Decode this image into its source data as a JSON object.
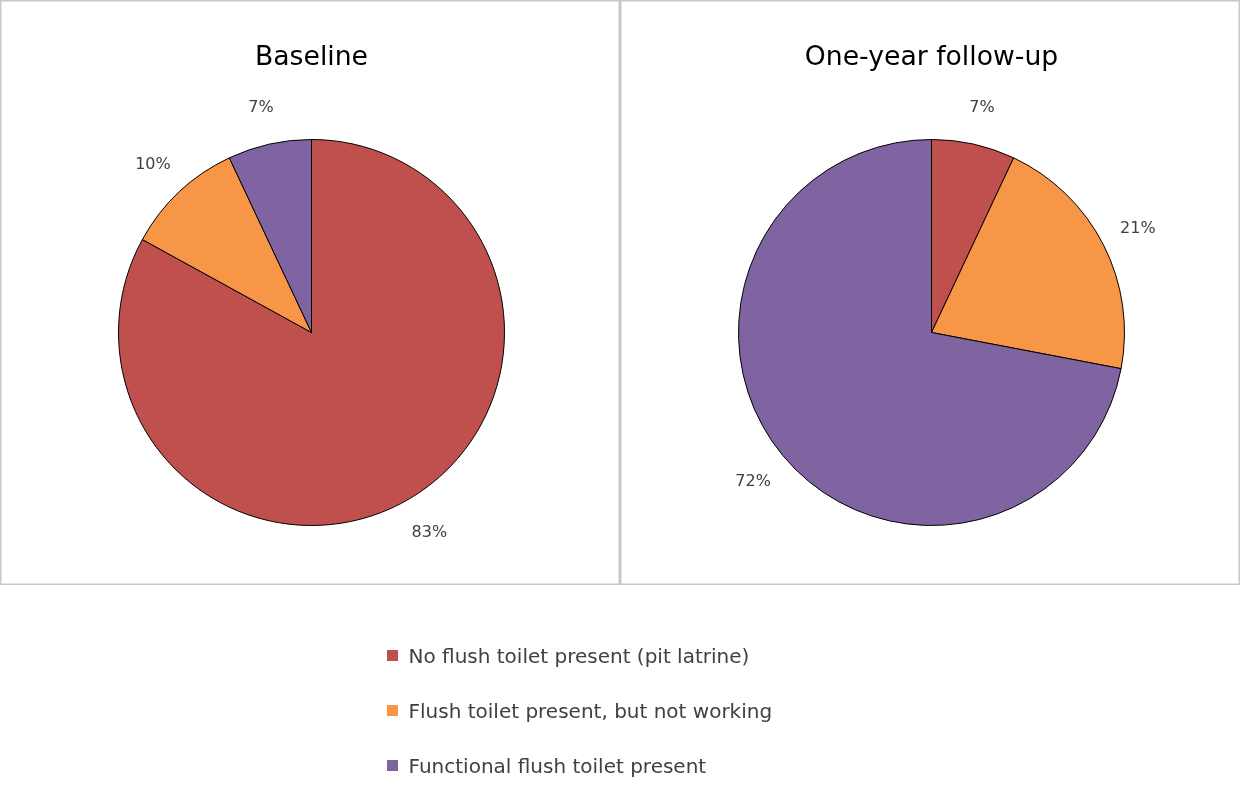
{
  "chart_data": [
    {
      "type": "pie",
      "title": "Baseline",
      "categories": [
        "No flush toilet present (pit latrine)",
        "Flush toilet present, but not working",
        "Functional flush toilet present"
      ],
      "values": [
        83,
        10,
        7
      ],
      "value_labels": [
        "83%",
        "10%",
        "7%"
      ],
      "colors": [
        "#c0504d",
        "#f79646",
        "#8064a2"
      ],
      "legend": "bottom"
    },
    {
      "type": "pie",
      "title": "One-year follow-up",
      "categories": [
        null,
        null,
        null
      ],
      "values": [
        7,
        21,
        72
      ],
      "value_labels": [
        "7%",
        "21%",
        "72%"
      ],
      "colors": [
        "#c0504d",
        "#f79646",
        "#8064a2"
      ]
    }
  ]
}
